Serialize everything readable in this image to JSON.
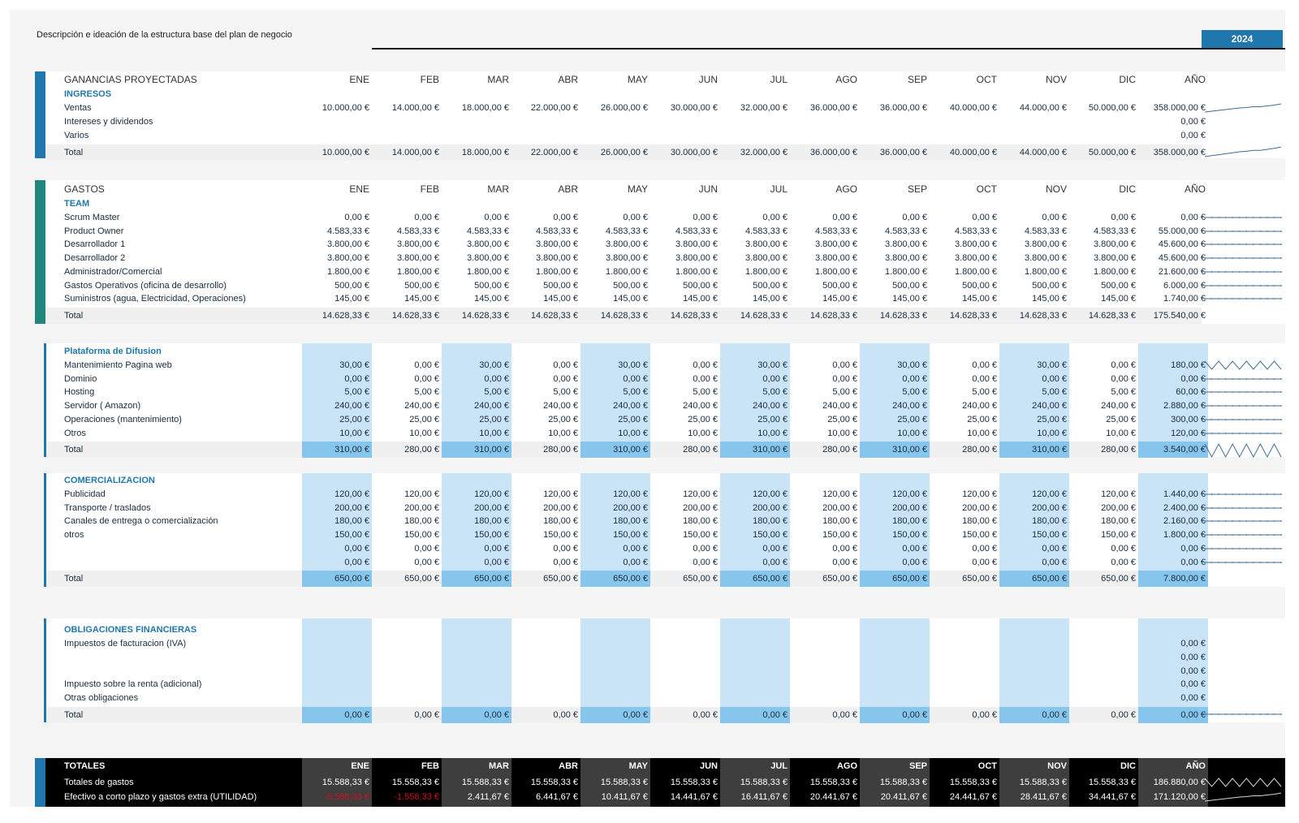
{
  "header": {
    "description": "Descripción e ideación de la estructura base del plan de negocio",
    "year": "2024"
  },
  "months": [
    "ENE",
    "FEB",
    "MAR",
    "ABR",
    "MAY",
    "JUN",
    "JUL",
    "AGO",
    "SEP",
    "OCT",
    "NOV",
    "DIC",
    "AÑO"
  ],
  "colors": {
    "accent": "#1f77ad",
    "teal": "#21867e",
    "band": "#c9e4f6",
    "band_total": "#86c5ec",
    "negative": "#d0101a"
  },
  "income": {
    "title": "GANANCIAS PROYECTADAS",
    "subtitle": "INGRESOS",
    "rows": [
      {
        "label": "Ventas",
        "values": [
          "10.000,00 €",
          "14.000,00 €",
          "18.000,00 €",
          "22.000,00 €",
          "26.000,00 €",
          "30.000,00 €",
          "32.000,00 €",
          "36.000,00 €",
          "36.000,00 €",
          "40.000,00 €",
          "44.000,00 €",
          "50.000,00 €",
          "358.000,00 €"
        ],
        "trend": [
          10000,
          14000,
          18000,
          22000,
          26000,
          30000,
          32000,
          36000,
          36000,
          40000,
          44000,
          50000
        ]
      },
      {
        "label": "Intereses y dividendos",
        "values": [
          "",
          "",
          "",
          "",
          "",
          "",
          "",
          "",
          "",
          "",
          "",
          "",
          "0,00 €"
        ],
        "trend": null
      },
      {
        "label": "Varios",
        "values": [
          "",
          "",
          "",
          "",
          "",
          "",
          "",
          "",
          "",
          "",
          "",
          "",
          "0,00 €"
        ],
        "trend": null
      }
    ],
    "total": {
      "label": "Total",
      "values": [
        "10.000,00 €",
        "14.000,00 €",
        "18.000,00 €",
        "22.000,00 €",
        "26.000,00 €",
        "30.000,00 €",
        "32.000,00 €",
        "36.000,00 €",
        "36.000,00 €",
        "40.000,00 €",
        "44.000,00 €",
        "50.000,00 €",
        "358.000,00 €"
      ],
      "trend": [
        10000,
        14000,
        18000,
        22000,
        26000,
        30000,
        32000,
        36000,
        36000,
        40000,
        44000,
        50000
      ]
    }
  },
  "expenses": {
    "title": "GASTOS",
    "subtitle": "TEAM",
    "rows": [
      {
        "label": "Scrum Master",
        "values": [
          "0,00 €",
          "0,00 €",
          "0,00 €",
          "0,00 €",
          "0,00 €",
          "0,00 €",
          "0,00 €",
          "0,00 €",
          "0,00 €",
          "0,00 €",
          "0,00 €",
          "0,00 €",
          "0,00 €"
        ],
        "trend": [
          0,
          0,
          0,
          0,
          0,
          0,
          0,
          0,
          0,
          0,
          0,
          0
        ]
      },
      {
        "label": "Product Owner",
        "values": [
          "4.583,33 €",
          "4.583,33 €",
          "4.583,33 €",
          "4.583,33 €",
          "4.583,33 €",
          "4.583,33 €",
          "4.583,33 €",
          "4.583,33 €",
          "4.583,33 €",
          "4.583,33 €",
          "4.583,33 €",
          "4.583,33 €",
          "55.000,00 €"
        ],
        "trend": [
          1,
          1,
          1,
          1,
          1,
          1,
          1,
          1,
          1,
          1,
          1,
          1
        ]
      },
      {
        "label": "Desarrollador 1",
        "values": [
          "3.800,00 €",
          "3.800,00 €",
          "3.800,00 €",
          "3.800,00 €",
          "3.800,00 €",
          "3.800,00 €",
          "3.800,00 €",
          "3.800,00 €",
          "3.800,00 €",
          "3.800,00 €",
          "3.800,00 €",
          "3.800,00 €",
          "45.600,00 €"
        ],
        "trend": [
          1,
          1,
          1,
          1,
          1,
          1,
          1,
          1,
          1,
          1,
          1,
          1
        ]
      },
      {
        "label": "Desarrollador 2",
        "values": [
          "3.800,00 €",
          "3.800,00 €",
          "3.800,00 €",
          "3.800,00 €",
          "3.800,00 €",
          "3.800,00 €",
          "3.800,00 €",
          "3.800,00 €",
          "3.800,00 €",
          "3.800,00 €",
          "3.800,00 €",
          "3.800,00 €",
          "45.600,00 €"
        ],
        "trend": [
          1,
          1,
          1,
          1,
          1,
          1,
          1,
          1,
          1,
          1,
          1,
          1
        ]
      },
      {
        "label": "Administrador/Comercial",
        "values": [
          "1.800,00 €",
          "1.800,00 €",
          "1.800,00 €",
          "1.800,00 €",
          "1.800,00 €",
          "1.800,00 €",
          "1.800,00 €",
          "1.800,00 €",
          "1.800,00 €",
          "1.800,00 €",
          "1.800,00 €",
          "1.800,00 €",
          "21.600,00 €"
        ],
        "trend": [
          1,
          1,
          1,
          1,
          1,
          1,
          1,
          1,
          1,
          1,
          1,
          1
        ]
      },
      {
        "label": "Gastos Operativos (oficina de desarrollo)",
        "values": [
          "500,00 €",
          "500,00 €",
          "500,00 €",
          "500,00 €",
          "500,00 €",
          "500,00 €",
          "500,00 €",
          "500,00 €",
          "500,00 €",
          "500,00 €",
          "500,00 €",
          "500,00 €",
          "6.000,00 €"
        ],
        "trend": [
          1,
          1,
          1,
          1,
          1,
          1,
          1,
          1,
          1,
          1,
          1,
          1
        ]
      },
      {
        "label": "Suministros (agua, Electricidad, Operaciones)",
        "values": [
          "145,00 €",
          "145,00 €",
          "145,00 €",
          "145,00 €",
          "145,00 €",
          "145,00 €",
          "145,00 €",
          "145,00 €",
          "145,00 €",
          "145,00 €",
          "145,00 €",
          "145,00 €",
          "1.740,00 €"
        ],
        "trend": [
          1,
          1,
          1,
          1,
          1,
          1,
          1,
          1,
          1,
          1,
          1,
          1
        ]
      }
    ],
    "total": {
      "label": "Total",
      "values": [
        "14.628,33 €",
        "14.628,33 €",
        "14.628,33 €",
        "14.628,33 €",
        "14.628,33 €",
        "14.628,33 €",
        "14.628,33 €",
        "14.628,33 €",
        "14.628,33 €",
        "14.628,33 €",
        "14.628,33 €",
        "14.628,33 €",
        "175.540,00 €"
      ],
      "trend": null
    }
  },
  "platform": {
    "subtitle": "Plataforma de Difusion",
    "rows": [
      {
        "label": "Mantenimiento Pagina web",
        "values": [
          "30,00 €",
          "0,00 €",
          "30,00 €",
          "0,00 €",
          "30,00 €",
          "0,00 €",
          "30,00 €",
          "0,00 €",
          "30,00 €",
          "0,00 €",
          "30,00 €",
          "0,00 €",
          "180,00 €"
        ],
        "trend": [
          30,
          0,
          30,
          0,
          30,
          0,
          30,
          0,
          30,
          0,
          30,
          0
        ]
      },
      {
        "label": "Dominio",
        "values": [
          "0,00 €",
          "0,00 €",
          "0,00 €",
          "0,00 €",
          "0,00 €",
          "0,00 €",
          "0,00 €",
          "0,00 €",
          "0,00 €",
          "0,00 €",
          "0,00 €",
          "0,00 €",
          "0,00 €"
        ],
        "trend": [
          0,
          0,
          0,
          0,
          0,
          0,
          0,
          0,
          0,
          0,
          0,
          0
        ]
      },
      {
        "label": "Hosting",
        "values": [
          "5,00 €",
          "5,00 €",
          "5,00 €",
          "5,00 €",
          "5,00 €",
          "5,00 €",
          "5,00 €",
          "5,00 €",
          "5,00 €",
          "5,00 €",
          "5,00 €",
          "5,00 €",
          "60,00 €"
        ],
        "trend": [
          1,
          1,
          1,
          1,
          1,
          1,
          1,
          1,
          1,
          1,
          1,
          1
        ]
      },
      {
        "label": "Servidor ( Amazon)",
        "values": [
          "240,00 €",
          "240,00 €",
          "240,00 €",
          "240,00 €",
          "240,00 €",
          "240,00 €",
          "240,00 €",
          "240,00 €",
          "240,00 €",
          "240,00 €",
          "240,00 €",
          "240,00 €",
          "2.880,00 €"
        ],
        "trend": [
          1,
          1,
          1,
          1,
          1,
          1,
          1,
          1,
          1,
          1,
          1,
          1
        ]
      },
      {
        "label": "Operaciones (mantenimiento)",
        "values": [
          "25,00 €",
          "25,00 €",
          "25,00 €",
          "25,00 €",
          "25,00 €",
          "25,00 €",
          "25,00 €",
          "25,00 €",
          "25,00 €",
          "25,00 €",
          "25,00 €",
          "25,00 €",
          "300,00 €"
        ],
        "trend": [
          1,
          1,
          1,
          1,
          1,
          1,
          1,
          1,
          1,
          1,
          1,
          1
        ]
      },
      {
        "label": "Otros",
        "values": [
          "10,00 €",
          "10,00 €",
          "10,00 €",
          "10,00 €",
          "10,00 €",
          "10,00 €",
          "10,00 €",
          "10,00 €",
          "10,00 €",
          "10,00 €",
          "10,00 €",
          "10,00 €",
          "120,00 €"
        ],
        "trend": [
          1,
          1,
          1,
          1,
          1,
          1,
          1,
          1,
          1,
          1,
          1,
          1
        ]
      }
    ],
    "total": {
      "label": "Total",
      "values": [
        "310,00 €",
        "280,00 €",
        "310,00 €",
        "280,00 €",
        "310,00 €",
        "280,00 €",
        "310,00 €",
        "280,00 €",
        "310,00 €",
        "280,00 €",
        "310,00 €",
        "280,00 €",
        "3.540,00 €"
      ],
      "trend": [
        310,
        280,
        310,
        280,
        310,
        280,
        310,
        280,
        310,
        280,
        310,
        280
      ]
    }
  },
  "commercial": {
    "subtitle": "COMERCIALIZACION",
    "rows": [
      {
        "label": "Publicidad",
        "values": [
          "120,00 €",
          "120,00 €",
          "120,00 €",
          "120,00 €",
          "120,00 €",
          "120,00 €",
          "120,00 €",
          "120,00 €",
          "120,00 €",
          "120,00 €",
          "120,00 €",
          "120,00 €",
          "1.440,00 €"
        ],
        "trend": [
          1,
          1,
          1,
          1,
          1,
          1,
          1,
          1,
          1,
          1,
          1,
          1
        ]
      },
      {
        "label": "Transporte / traslados",
        "values": [
          "200,00 €",
          "200,00 €",
          "200,00 €",
          "200,00 €",
          "200,00 €",
          "200,00 €",
          "200,00 €",
          "200,00 €",
          "200,00 €",
          "200,00 €",
          "200,00 €",
          "200,00 €",
          "2.400,00 €"
        ],
        "trend": [
          1,
          1,
          1,
          1,
          1,
          1,
          1,
          1,
          1,
          1,
          1,
          1
        ]
      },
      {
        "label": "Canales de entrega o comercialización",
        "values": [
          "180,00 €",
          "180,00 €",
          "180,00 €",
          "180,00 €",
          "180,00 €",
          "180,00 €",
          "180,00 €",
          "180,00 €",
          "180,00 €",
          "180,00 €",
          "180,00 €",
          "180,00 €",
          "2.160,00 €"
        ],
        "trend": [
          1,
          1,
          1,
          1,
          1,
          1,
          1,
          1,
          1,
          1,
          1,
          1
        ]
      },
      {
        "label": "otros",
        "values": [
          "150,00 €",
          "150,00 €",
          "150,00 €",
          "150,00 €",
          "150,00 €",
          "150,00 €",
          "150,00 €",
          "150,00 €",
          "150,00 €",
          "150,00 €",
          "150,00 €",
          "150,00 €",
          "1.800,00 €"
        ],
        "trend": [
          1,
          1,
          1,
          1,
          1,
          1,
          1,
          1,
          1,
          1,
          1,
          1
        ]
      },
      {
        "label": "",
        "values": [
          "0,00 €",
          "0,00 €",
          "0,00 €",
          "0,00 €",
          "0,00 €",
          "0,00 €",
          "0,00 €",
          "0,00 €",
          "0,00 €",
          "0,00 €",
          "0,00 €",
          "0,00 €",
          "0,00 €"
        ],
        "trend": [
          0,
          0,
          0,
          0,
          0,
          0,
          0,
          0,
          0,
          0,
          0,
          0
        ]
      },
      {
        "label": "",
        "values": [
          "0,00 €",
          "0,00 €",
          "0,00 €",
          "0,00 €",
          "0,00 €",
          "0,00 €",
          "0,00 €",
          "0,00 €",
          "0,00 €",
          "0,00 €",
          "0,00 €",
          "0,00 €",
          "0,00 €"
        ],
        "trend": [
          0,
          0,
          0,
          0,
          0,
          0,
          0,
          0,
          0,
          0,
          0,
          0
        ]
      }
    ],
    "total": {
      "label": "Total",
      "values": [
        "650,00 €",
        "650,00 €",
        "650,00 €",
        "650,00 €",
        "650,00 €",
        "650,00 €",
        "650,00 €",
        "650,00 €",
        "650,00 €",
        "650,00 €",
        "650,00 €",
        "650,00 €",
        "7.800,00 €"
      ],
      "trend": null
    }
  },
  "obligations": {
    "subtitle": "OBLIGACIONES FINANCIERAS",
    "rows": [
      {
        "label": "Impuestos de facturacion (IVA)",
        "values": [
          "",
          "",
          "",
          "",
          "",
          "",
          "",
          "",
          "",
          "",
          "",
          "",
          "0,00 €"
        ],
        "trend": null
      },
      {
        "label": "",
        "values": [
          "",
          "",
          "",
          "",
          "",
          "",
          "",
          "",
          "",
          "",
          "",
          "",
          "0,00 €"
        ],
        "trend": null
      },
      {
        "label": "",
        "values": [
          "",
          "",
          "",
          "",
          "",
          "",
          "",
          "",
          "",
          "",
          "",
          "",
          "0,00 €"
        ],
        "trend": null
      },
      {
        "label": "Impuesto sobre la renta (adicional)",
        "values": [
          "",
          "",
          "",
          "",
          "",
          "",
          "",
          "",
          "",
          "",
          "",
          "",
          "0,00 €"
        ],
        "trend": null
      },
      {
        "label": "Otras obligaciones",
        "values": [
          "",
          "",
          "",
          "",
          "",
          "",
          "",
          "",
          "",
          "",
          "",
          "",
          "0,00 €"
        ],
        "trend": null
      }
    ],
    "total": {
      "label": "Total",
      "values": [
        "0,00 €",
        "0,00 €",
        "0,00 €",
        "0,00 €",
        "0,00 €",
        "0,00 €",
        "0,00 €",
        "0,00 €",
        "0,00 €",
        "0,00 €",
        "0,00 €",
        "0,00 €",
        "0,00 €"
      ],
      "trend": [
        0,
        0,
        0,
        0,
        0,
        0,
        0,
        0,
        0,
        0,
        0,
        0
      ]
    }
  },
  "totals": {
    "title": "TOTALES",
    "rows": [
      {
        "label": "Totales de gastos",
        "values": [
          "15.588,33 €",
          "15.558,33 €",
          "15.588,33 €",
          "15.558,33 €",
          "15.588,33 €",
          "15.558,33 €",
          "15.588,33 €",
          "15.558,33 €",
          "15.588,33 €",
          "15.558,33 €",
          "15.588,33 €",
          "15.558,33 €",
          "186.880,00 €"
        ],
        "trend": [
          15588,
          15558,
          15588,
          15558,
          15588,
          15558,
          15588,
          15558,
          15588,
          15558,
          15588,
          15558
        ]
      },
      {
        "label": "Efectivo a corto plazo y gastos extra (UTILIDAD)",
        "values": [
          "-5.588,33 €",
          "-1.558,33 €",
          "2.411,67 €",
          "6.441,67 €",
          "10.411,67 €",
          "14.441,67 €",
          "16.411,67 €",
          "20.441,67 €",
          "20.411,67 €",
          "24.441,67 €",
          "28.411,67 €",
          "34.441,67 €",
          "171.120,00 €"
        ],
        "trend": [
          -5588,
          -1558,
          2412,
          6442,
          10412,
          14442,
          16412,
          20442,
          20412,
          24442,
          28412,
          34442
        ]
      }
    ]
  }
}
